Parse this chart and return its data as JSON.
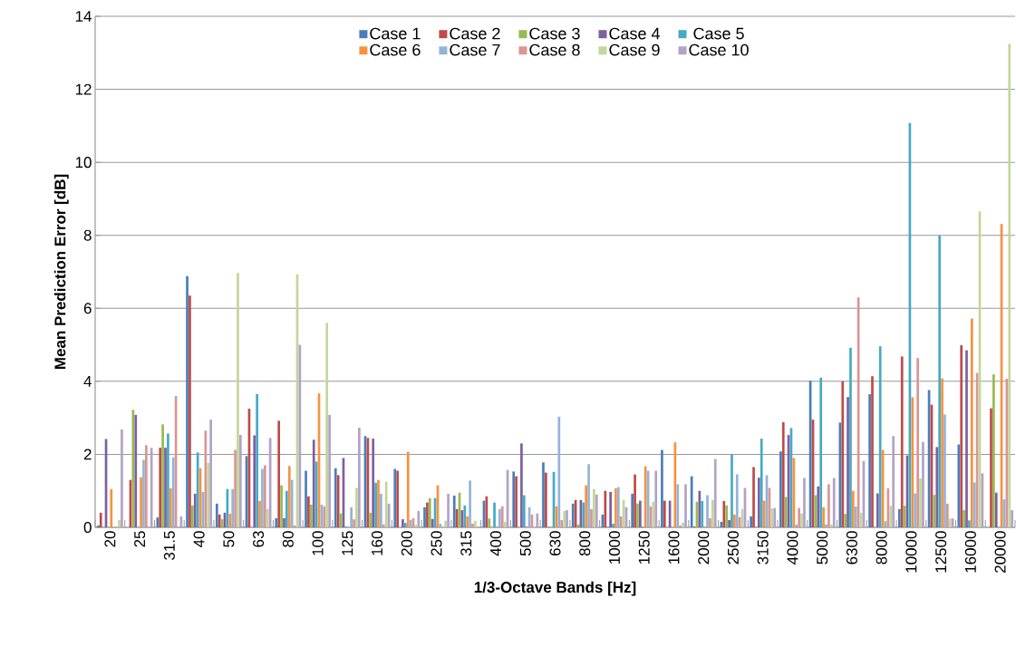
{
  "chart_data": {
    "type": "bar",
    "xlabel": "1/3-Octave Bands [Hz]",
    "ylabel": "Mean Prediction Error [dB]",
    "categories": [
      "20",
      "25",
      "31.5",
      "40",
      "50",
      "63",
      "80",
      "100",
      "125",
      "160",
      "200",
      "250",
      "315",
      "400",
      "500",
      "630",
      "800",
      "1000",
      "1250",
      "1600",
      "2000",
      "2500",
      "3150",
      "4000",
      "5000",
      "6300",
      "8000",
      "10000",
      "12500",
      "16000",
      "20000"
    ],
    "ylim": [
      0,
      14
    ],
    "yticks": [
      0,
      2,
      4,
      6,
      8,
      10,
      12,
      14
    ],
    "grid": "y",
    "legend": "top",
    "series": [
      {
        "name": "Case 1",
        "color": "#4a7ebb",
        "values": [
          0.05,
          0,
          0.27,
          6.88,
          0.65,
          1.95,
          0.25,
          1.55,
          1.62,
          2.5,
          1.6,
          0.55,
          0.87,
          0.73,
          1.53,
          1.78,
          0.65,
          0.35,
          0.92,
          2.12,
          1.4,
          0.15,
          0.3,
          2.08,
          4.02,
          2.87,
          3.65,
          0.5,
          3.76,
          2.27,
          0
        ]
      },
      {
        "name": "Case 2",
        "color": "#be4b48",
        "values": [
          0.4,
          1.3,
          2.18,
          6.35,
          0.35,
          3.25,
          2.92,
          0.85,
          1.43,
          2.45,
          1.55,
          0.68,
          0.5,
          0.85,
          1.4,
          1.5,
          0.75,
          1.0,
          1.45,
          0.73,
          0.02,
          0.72,
          1.65,
          2.88,
          2.95,
          4.0,
          4.14,
          4.68,
          3.36,
          4.99,
          3.26
        ]
      },
      {
        "name": "Case 3",
        "color": "#98b954",
        "values": [
          0,
          3.22,
          2.82,
          0.6,
          0.22,
          0,
          1.15,
          0.62,
          0.38,
          0.4,
          0,
          0.8,
          0.95,
          0.24,
          0,
          0.02,
          0.08,
          0.02,
          0.65,
          0,
          0.7,
          0.6,
          0.02,
          0.83,
          0.88,
          0.37,
          0,
          0.59,
          0.89,
          0.47,
          4.19
        ]
      },
      {
        "name": "Case 4",
        "color": "#7d60a0",
        "values": [
          2.42,
          3.08,
          2.18,
          0.92,
          0.4,
          2.52,
          0.25,
          2.4,
          1.9,
          2.43,
          0.22,
          0.23,
          0.47,
          0,
          2.3,
          0,
          0.75,
          0.97,
          0.73,
          0.73,
          1.0,
          0.2,
          1.36,
          2.53,
          1.12,
          3.57,
          0.93,
          1.97,
          2.2,
          4.85,
          0.95
        ]
      },
      {
        "name": "Case 5",
        "color": "#46aac5",
        "values": [
          0,
          0,
          2.57,
          2.05,
          1.05,
          3.65,
          1.0,
          1.8,
          0.02,
          1.22,
          0.12,
          0.8,
          0.6,
          0.68,
          0.88,
          1.52,
          0.68,
          0.1,
          0.02,
          0,
          0.72,
          2.0,
          2.43,
          2.72,
          4.1,
          4.92,
          4.96,
          11.08,
          8.0,
          0.19,
          0
        ]
      },
      {
        "name": "Case 6",
        "color": "#f69240",
        "values": [
          1.05,
          1.37,
          1.07,
          1.62,
          0.37,
          0.72,
          1.68,
          3.67,
          0,
          1.3,
          2.07,
          1.15,
          0.3,
          0.02,
          0.03,
          0.58,
          1.15,
          1.07,
          1.67,
          2.33,
          0.02,
          0.35,
          0.73,
          1.9,
          0.55,
          1.0,
          2.12,
          3.56,
          4.08,
          5.72,
          8.31
        ]
      },
      {
        "name": "Case 7",
        "color": "#95b3d7",
        "values": [
          0,
          1.85,
          1.92,
          0.97,
          1.05,
          1.6,
          1.3,
          0.62,
          0.55,
          0.92,
          0.2,
          0.1,
          1.28,
          0.5,
          0.55,
          3.03,
          1.73,
          1.1,
          1.55,
          1.18,
          0.88,
          1.45,
          1.43,
          0.08,
          0.08,
          0.57,
          0.17,
          0.93,
          3.09,
          1.23,
          0.77
        ]
      },
      {
        "name": "Case 8",
        "color": "#d99694",
        "values": [
          0,
          2.25,
          3.6,
          2.65,
          2.12,
          1.7,
          0.05,
          0.57,
          0.22,
          0.08,
          0.25,
          0,
          0.1,
          0.58,
          0.35,
          0.2,
          0.5,
          0.3,
          0.57,
          0.05,
          0.25,
          0.28,
          1.08,
          0.53,
          1.18,
          6.3,
          1.07,
          4.64,
          0.65,
          4.23,
          4.07
        ]
      },
      {
        "name": "Case 9",
        "color": "#c3d69b",
        "values": [
          0.2,
          0,
          0,
          1.77,
          6.97,
          0.5,
          6.93,
          5.6,
          1.08,
          1.25,
          0.07,
          0.18,
          0.18,
          0.15,
          0.03,
          0.45,
          1.05,
          0.75,
          0.7,
          0.13,
          0.75,
          0.5,
          0.52,
          0.38,
          0.08,
          0.4,
          0.59,
          1.34,
          0.24,
          8.66,
          13.24
        ]
      },
      {
        "name": "Case 10",
        "color": "#b2a2c7",
        "values": [
          2.68,
          2.18,
          0.3,
          2.95,
          2.53,
          2.45,
          5.0,
          3.08,
          2.73,
          0.65,
          0.45,
          0.92,
          0,
          1.57,
          0.38,
          0.47,
          0.9,
          0.55,
          1.55,
          1.18,
          1.87,
          1.08,
          0.53,
          1.35,
          1.35,
          1.82,
          2.5,
          2.34,
          0.24,
          1.48,
          0.47
        ]
      }
    ]
  }
}
